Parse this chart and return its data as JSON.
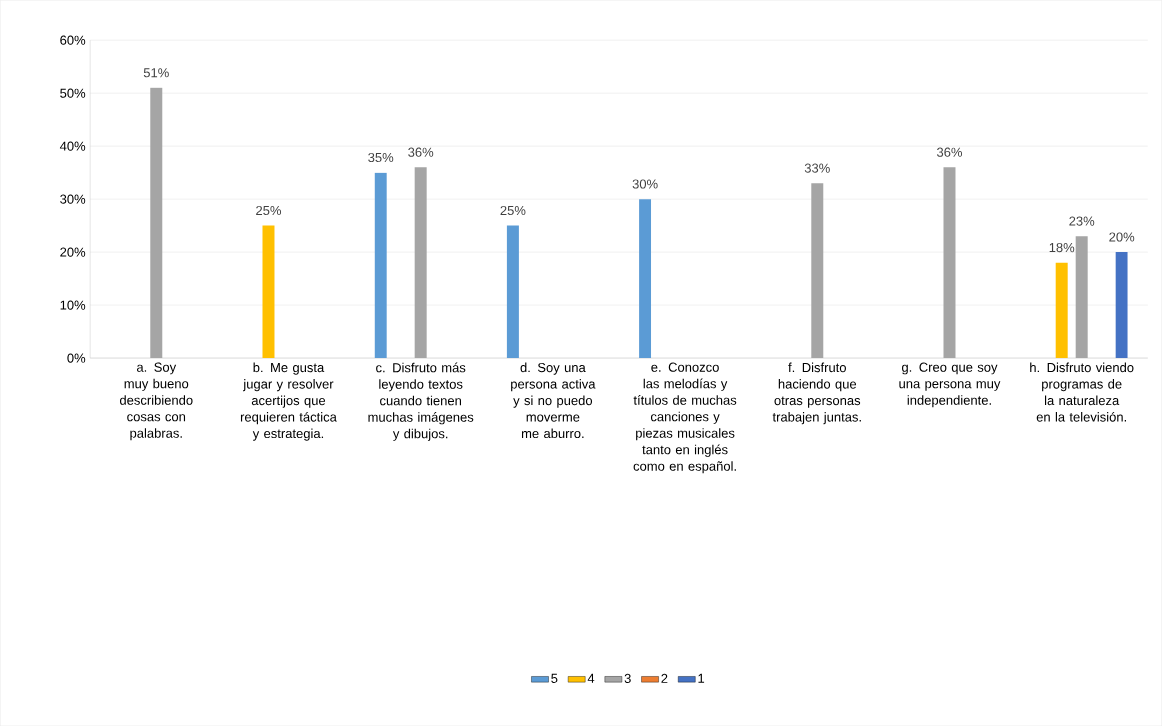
{
  "chart_data": {
    "type": "bar",
    "categories": [
      "a. Soy muy bueno describiendo cosas con palabras.",
      "b. Me gusta jugar y resolver acertijos que requieren táctica y estrategia.",
      "c. Disfruto más leyendo textos cuando tienen muchas imágenes y dibujos.",
      "d. Soy una persona activa y si no puedo moverme me aburro.",
      "e. Conozco las melodías y títulos de muchas canciones y piezas musicales tanto en inglés como en español.",
      "f. Disfruto haciendo que otras personas trabajen juntas.",
      "g. Creo que soy una persona muy independiente.",
      "h. Disfruto viendo programas de la naturaleza en la televisión."
    ],
    "series": [
      {
        "name": "5",
        "color": "#5b9bd5",
        "values": [
          null,
          null,
          35,
          25,
          30,
          null,
          null,
          null
        ],
        "value_labels": [
          null,
          null,
          "35%",
          "25%",
          "30%",
          null,
          null,
          null
        ]
      },
      {
        "name": "4",
        "color": "#ffc000",
        "values": [
          null,
          25,
          null,
          null,
          null,
          null,
          null,
          18
        ],
        "value_labels": [
          null,
          "25%",
          null,
          null,
          null,
          null,
          null,
          "18%"
        ]
      },
      {
        "name": "3",
        "color": "#a5a5a5",
        "values": [
          51,
          null,
          36,
          null,
          null,
          33,
          36,
          23
        ],
        "value_labels": [
          "51%",
          null,
          "36%",
          null,
          null,
          "33%",
          "36%",
          "23%"
        ]
      },
      {
        "name": "2",
        "color": "#ed7d31",
        "values": [
          null,
          null,
          null,
          null,
          null,
          null,
          null,
          null
        ]
      },
      {
        "name": "1",
        "color": "#4472c4",
        "values": [
          null,
          null,
          null,
          null,
          null,
          null,
          null,
          20
        ],
        "value_labels": [
          null,
          null,
          null,
          null,
          null,
          null,
          null,
          "20%"
        ]
      }
    ],
    "ylim": [
      0,
      60
    ],
    "yticks": [
      {
        "value": 0,
        "label": "0%"
      },
      {
        "value": 10,
        "label": "10%"
      },
      {
        "value": 20,
        "label": "20%"
      },
      {
        "value": 30,
        "label": "30%"
      },
      {
        "value": 40,
        "label": "40%"
      },
      {
        "value": 50,
        "label": "50%"
      },
      {
        "value": 60,
        "label": "60%"
      }
    ],
    "grid": "y",
    "legend": "bottom"
  }
}
